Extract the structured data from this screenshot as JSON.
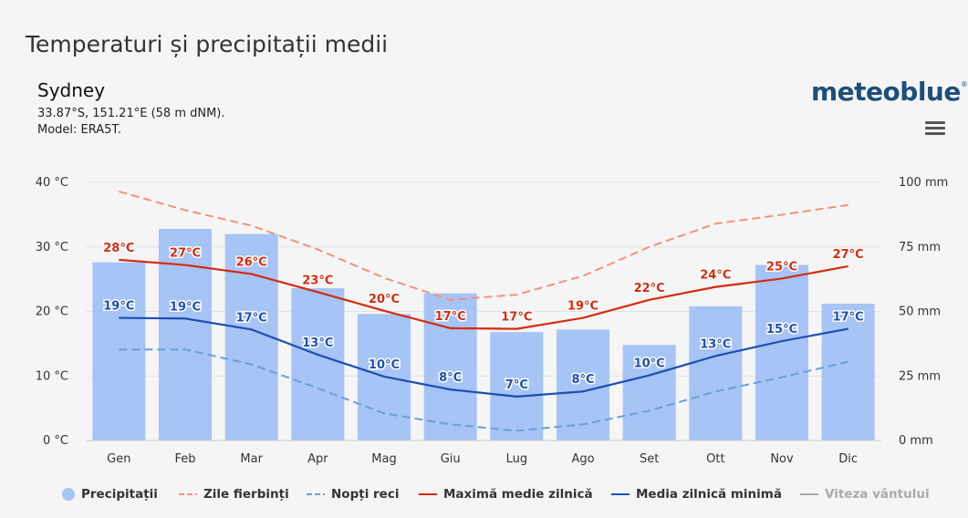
{
  "header": {
    "title": "Temperaturi și precipitații medii",
    "city": "Sydney",
    "coords": "33.87°S, 151.21°E (58 m dNM).",
    "model": "Model: ERA5T.",
    "logo": "meteoblue",
    "logo_mark": "®"
  },
  "colors": {
    "precip": "#a6c4f5",
    "hot": "#f4917a",
    "cold": "#6a9fd8",
    "max": "#d52b0e",
    "min": "#1d4fb4",
    "wind": "#aaaaaa"
  },
  "chart_data": {
    "type": "bar",
    "categories": [
      "Gen",
      "Feb",
      "Mar",
      "Apr",
      "Mag",
      "Giu",
      "Lug",
      "Ago",
      "Set",
      "Ott",
      "Nov",
      "Dic"
    ],
    "y_left_ticks": [
      "40 °C",
      "30 °C",
      "20 °C",
      "10 °C",
      "0 °C"
    ],
    "y_right_ticks": [
      "100 mm",
      "75 mm",
      "50 mm",
      "25 mm",
      "0 mm"
    ],
    "ylim_left": [
      0,
      40
    ],
    "ylim_right": [
      0,
      100
    ],
    "series": [
      {
        "name": "Precipitații",
        "kind": "bar",
        "axis": "right",
        "values": [
          69,
          82,
          80,
          59,
          49,
          57,
          42,
          43,
          37,
          52,
          68,
          53
        ]
      },
      {
        "name": "Zile fierbinți",
        "kind": "dashed",
        "axis": "left",
        "values": [
          38.6,
          35.7,
          33.3,
          29.6,
          25.2,
          21.8,
          22.6,
          25.5,
          30.0,
          33.6,
          35.0,
          36.5
        ]
      },
      {
        "name": "Nopți reci",
        "kind": "dashed",
        "axis": "left",
        "values": [
          14.1,
          14.1,
          11.8,
          8.1,
          4.2,
          2.5,
          1.5,
          2.5,
          4.6,
          7.6,
          9.8,
          12.2
        ]
      },
      {
        "name": "Maximă medie zilnică",
        "kind": "solid",
        "axis": "left",
        "values": [
          28,
          27.2,
          25.8,
          23,
          20.1,
          17.4,
          17.3,
          19,
          21.8,
          23.8,
          25.1,
          27
        ],
        "labels": [
          "28°C",
          "27°C",
          "26°C",
          "23°C",
          "20°C",
          "17°C",
          "17°C",
          "19°C",
          "22°C",
          "24°C",
          "25°C",
          "27°C"
        ]
      },
      {
        "name": "Media zilnică minimă",
        "kind": "solid",
        "axis": "left",
        "values": [
          19,
          18.9,
          17.2,
          13.3,
          9.9,
          7.9,
          6.8,
          7.6,
          10.1,
          13.1,
          15.4,
          17.3
        ],
        "labels": [
          "19°C",
          "19°C",
          "17°C",
          "13°C",
          "10°C",
          "8°C",
          "7°C",
          "8°C",
          "10°C",
          "13°C",
          "15°C",
          "17°C"
        ]
      }
    ],
    "grid": true,
    "legend": "bottom"
  },
  "legend": {
    "precip": "Precipitații",
    "hot": "Zile fierbinți",
    "cold": "Nopți reci",
    "max": "Maximă medie zilnică",
    "min": "Media zilnică minimă",
    "wind": "Viteza vântului"
  }
}
